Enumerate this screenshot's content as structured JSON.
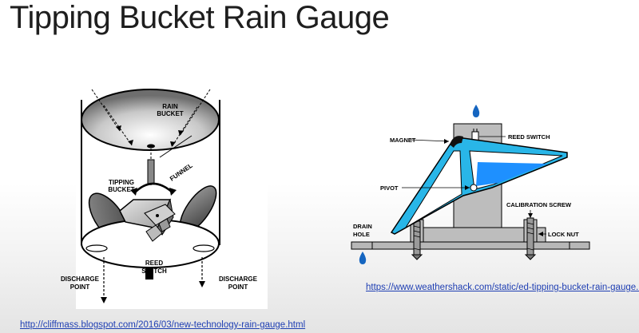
{
  "slide": {
    "title": "Tipping Bucket Rain Gauge"
  },
  "left_diagram": {
    "labels": {
      "rain_bucket_line1": "RAIN",
      "rain_bucket_line2": "BUCKET",
      "funnel": "FUNNEL",
      "tipping_line1": "TIPPING",
      "tipping_line2": "BUCKET",
      "reed_line1": "REED",
      "reed_line2": "SWITCH",
      "discharge_left_line1": "DISCHARGE",
      "discharge_left_line2": "POINT",
      "discharge_right_line1": "DISCHARGE",
      "discharge_right_line2": "POINT"
    },
    "source_link": "http://cliffmass.blogspot.com/2016/03/new-technology-rain-gauge.html"
  },
  "right_diagram": {
    "labels": {
      "magnet": "MAGNET",
      "reed_switch": "REED SWITCH",
      "pivot": "PIVOT",
      "calibration_screw": "CALIBRATION SCREW",
      "drain_hole_line1": "DRAIN",
      "drain_hole_line2": "HOLE",
      "lock_nut": "LOCK NUT"
    },
    "colors": {
      "bucket_fill": "#29b6e8",
      "water": "#1e90ff",
      "drop": "#1565c0"
    },
    "source_link": "https://www.weathershack.com/static/ed-tipping-bucket-rain-gauge.html"
  }
}
